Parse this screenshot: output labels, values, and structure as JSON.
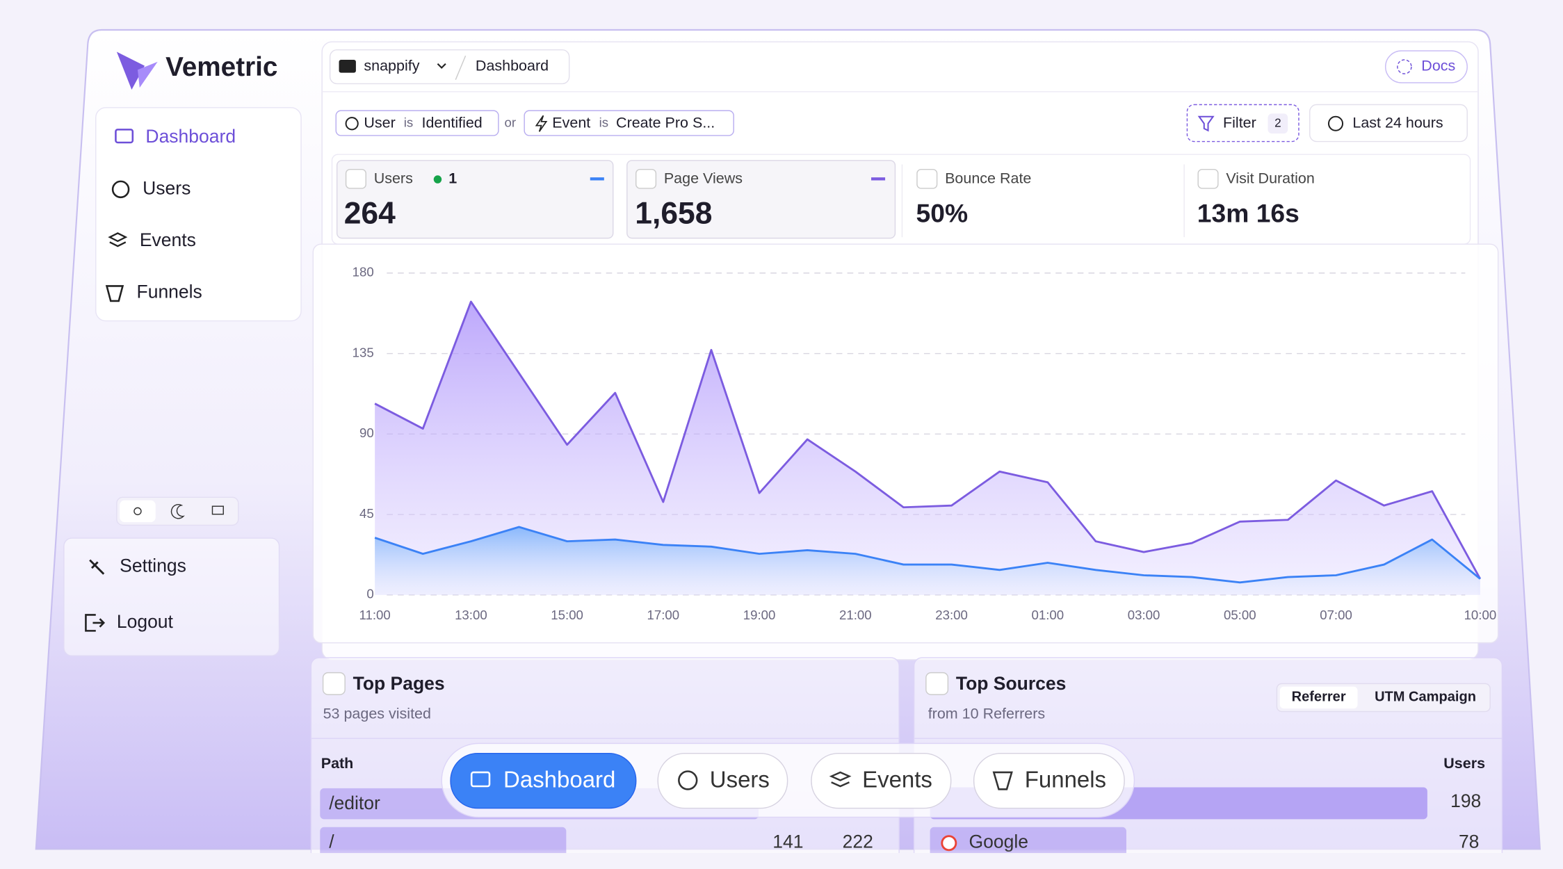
{
  "sidebar": {
    "brand": "Vemetric",
    "nav": [
      "Dashboard",
      "Users",
      "Events",
      "Funnels"
    ],
    "settings": "Settings",
    "logout": "Logout"
  },
  "header": {
    "project": "snappify",
    "page": "Dashboard",
    "docs": "Docs"
  },
  "filters": {
    "items": [
      {
        "field": "User",
        "op": "is",
        "value": "Identified"
      },
      {
        "field": "Event",
        "op": "is",
        "value": "Create Pro S..."
      }
    ],
    "joiner": "or",
    "filter_button": "Filter",
    "filter_count": "2",
    "range": "Last 24 hours"
  },
  "stats": [
    {
      "label": "Users",
      "value": "264",
      "live": "1"
    },
    {
      "label": "Page Views",
      "value": "1,658"
    },
    {
      "label": "Bounce Rate",
      "value": "50%"
    },
    {
      "label": "Visit Duration",
      "value": "13m 16s"
    }
  ],
  "chart_data": {
    "type": "area",
    "categories": [
      "11:00",
      null,
      "13:00",
      null,
      "15:00",
      null,
      "17:00",
      null,
      "19:00",
      null,
      "21:00",
      null,
      "23:00",
      null,
      "01:00",
      null,
      "03:00",
      null,
      "05:00",
      null,
      "07:00",
      null,
      null,
      "10:00"
    ],
    "series": [
      {
        "color": "#7c5ce0",
        "values": [
          107,
          93,
          164,
          124,
          84,
          113,
          52,
          137,
          57,
          87,
          69,
          49,
          50,
          69,
          63,
          30,
          24,
          29,
          41,
          42,
          64,
          50,
          58,
          9
        ]
      },
      {
        "color": "#3b82f6",
        "values": [
          32,
          23,
          30,
          38,
          30,
          31,
          28,
          27,
          23,
          25,
          23,
          17,
          17,
          14,
          18,
          14,
          11,
          10,
          7,
          10,
          11,
          17,
          31,
          9
        ]
      }
    ],
    "ylim": [
      0,
      180
    ],
    "yticks": [
      0,
      45,
      90,
      135,
      180
    ],
    "grid": true
  },
  "top_pages": {
    "title": "Top Pages",
    "subtitle": "53 pages visited",
    "column": "Path",
    "rows": [
      {
        "path": "/editor"
      },
      {
        "path": "/",
        "users": "141",
        "views": "222"
      }
    ]
  },
  "top_sources": {
    "title": "Top Sources",
    "subtitle": "from 10 Referrers",
    "tabs": [
      "Referrer",
      "UTM Campaign"
    ],
    "column": "Users",
    "rows": [
      {
        "users": "198"
      },
      {
        "name": "Google",
        "users": "78"
      }
    ]
  },
  "bottom_nav": [
    "Dashboard",
    "Users",
    "Events",
    "Funnels"
  ]
}
